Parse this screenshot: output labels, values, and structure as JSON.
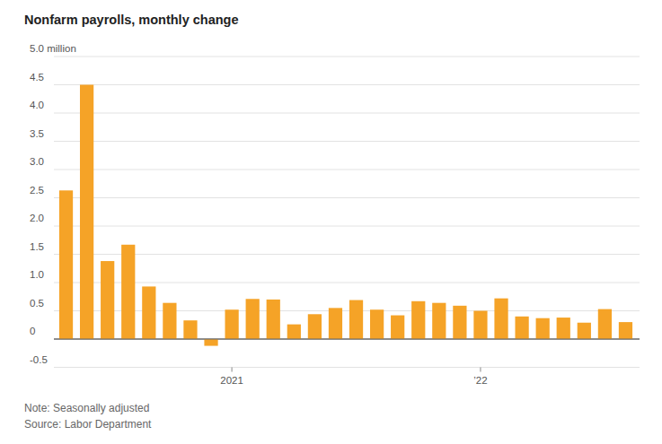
{
  "chart_data": {
    "type": "bar",
    "title": "Nonfarm payrolls, monthly change",
    "note": "Note: Seasonally adjusted",
    "source": "Source: Labor Department",
    "categories": [
      null,
      null,
      null,
      null,
      null,
      null,
      null,
      null,
      "2021",
      null,
      null,
      null,
      null,
      null,
      null,
      null,
      null,
      null,
      null,
      null,
      "’22",
      null,
      null,
      null,
      null,
      null,
      null,
      null
    ],
    "values": [
      2.63,
      4.5,
      1.38,
      1.67,
      0.93,
      0.64,
      0.33,
      -0.12,
      0.52,
      0.71,
      0.7,
      0.26,
      0.44,
      0.55,
      0.69,
      0.52,
      0.42,
      0.67,
      0.64,
      0.59,
      0.5,
      0.72,
      0.4,
      0.37,
      0.38,
      0.29,
      0.53,
      0.3
    ],
    "color": "#f5a327",
    "ylim": [
      -0.5,
      5.0
    ],
    "yticks": [
      -0.5,
      0,
      0.5,
      {
        "value": 1,
        "label": "1.0"
      },
      1.5,
      {
        "value": 2,
        "label": "2.0"
      },
      2.5,
      {
        "value": 3,
        "label": "3.0"
      },
      3.5,
      {
        "value": 4,
        "label": "4.0"
      },
      4.5,
      {
        "value": 5,
        "label": "5.0 million"
      }
    ],
    "grid": true
  }
}
